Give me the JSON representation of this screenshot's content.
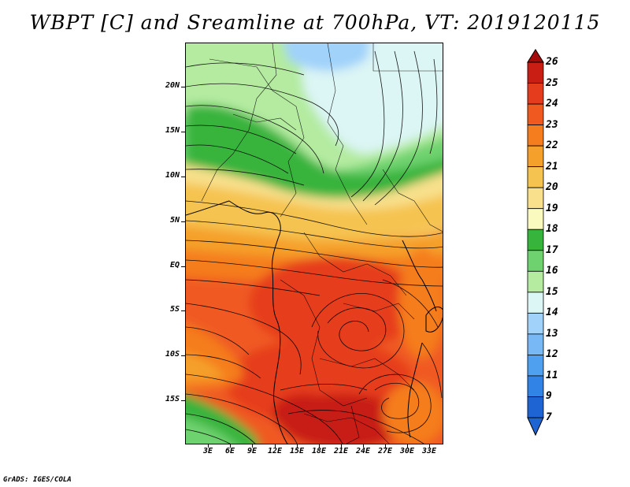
{
  "title": "WBPT [C] and Sreamline at 700hPa, VT: 2019120115",
  "credit": "GrADS: IGES/COLA",
  "latitude_labels": [
    "20N",
    "15N",
    "10N",
    "5N",
    "EQ",
    "5S",
    "10S",
    "15S"
  ],
  "longitude_labels": [
    "3E",
    "6E",
    "9E",
    "12E",
    "15E",
    "18E",
    "21E",
    "24E",
    "27E",
    "30E",
    "33E"
  ],
  "colorbar": {
    "labels": [
      "26",
      "25",
      "24",
      "23",
      "22",
      "21",
      "20",
      "19",
      "18",
      "17",
      "16",
      "15",
      "14",
      "13",
      "12",
      "11",
      "9",
      "7"
    ],
    "colors": [
      "#a50a0a",
      "#c81e14",
      "#e63c1e",
      "#f05a20",
      "#f57d1e",
      "#f5a02a",
      "#f5c350",
      "#f8e08c",
      "#fafabe",
      "#37b43c",
      "#6ed26e",
      "#b4eba0",
      "#dcf5f5",
      "#a0d2fa",
      "#78b9f5",
      "#50a0f0",
      "#3283e6",
      "#1e64d2"
    ]
  }
}
